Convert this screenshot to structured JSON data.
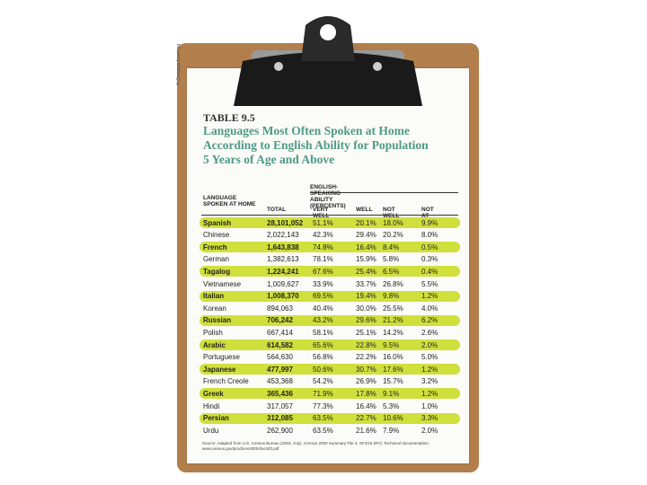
{
  "side_credit": "© Cengage Learning",
  "table_label": "TABLE 9.5",
  "title_lines": [
    "Languages Most Often Spoken at Home",
    "According to English Ability for Population",
    "5 Years of Age and Above"
  ],
  "table": {
    "group_header": "ENGLISH-SPEAKING ABILITY (PERCENTS)",
    "columns": [
      "LANGUAGE SPOKEN AT HOME",
      "TOTAL",
      "VERY WELL",
      "WELL",
      "NOT WELL",
      "NOT AT ALL"
    ],
    "rows": [
      [
        "Spanish",
        "28,101,052",
        "51.1%",
        "20.1%",
        "18.0%",
        "9.9%"
      ],
      [
        "Chinese",
        "2,022,143",
        "42.3%",
        "29.4%",
        "20.2%",
        "8.0%"
      ],
      [
        "French",
        "1,643,838",
        "74.8%",
        "16.4%",
        "8.4%",
        "0.5%"
      ],
      [
        "German",
        "1,382,613",
        "78.1%",
        "15.9%",
        "5.8%",
        "0.3%"
      ],
      [
        "Tagalog",
        "1,224,241",
        "67.6%",
        "25.4%",
        "6.5%",
        "0.4%"
      ],
      [
        "Vietnamese",
        "1,009,627",
        "33.9%",
        "33.7%",
        "26.8%",
        "5.5%"
      ],
      [
        "Italian",
        "1,008,370",
        "69.5%",
        "19.4%",
        "9.8%",
        "1.2%"
      ],
      [
        "Korean",
        "894,063",
        "40.4%",
        "30.0%",
        "25.5%",
        "4.0%"
      ],
      [
        "Russian",
        "706,242",
        "43.2%",
        "29.6%",
        "21.2%",
        "6.2%"
      ],
      [
        "Polish",
        "667,414",
        "58.1%",
        "25.1%",
        "14.2%",
        "2.6%"
      ],
      [
        "Arabic",
        "614,582",
        "65.6%",
        "22.8%",
        "9.5%",
        "2.0%"
      ],
      [
        "Portuguese",
        "564,630",
        "56.8%",
        "22.2%",
        "16.0%",
        "5.0%"
      ],
      [
        "Japanese",
        "477,997",
        "50.6%",
        "30.7%",
        "17.6%",
        "1.2%"
      ],
      [
        "French Creole",
        "453,368",
        "54.2%",
        "26.9%",
        "15.7%",
        "3.2%"
      ],
      [
        "Greek",
        "365,436",
        "71.9%",
        "17.8%",
        "9.1%",
        "1.2%"
      ],
      [
        "Hindi",
        "317,057",
        "77.3%",
        "16.4%",
        "5.3%",
        "1.0%"
      ],
      [
        "Persian",
        "312,085",
        "63.5%",
        "22.7%",
        "10.6%",
        "3.3%"
      ],
      [
        "Urdu",
        "262,900",
        "63.5%",
        "21.6%",
        "7.9%",
        "2.0%"
      ]
    ]
  },
  "source": "Source: Adapted from U.S. Census Bureau (2003, July). Census 2000 Summary File 3, SF3/18 (RV): Technical documentation. www.census.gov/prod/cen2000/doc/sf3.pdf"
}
